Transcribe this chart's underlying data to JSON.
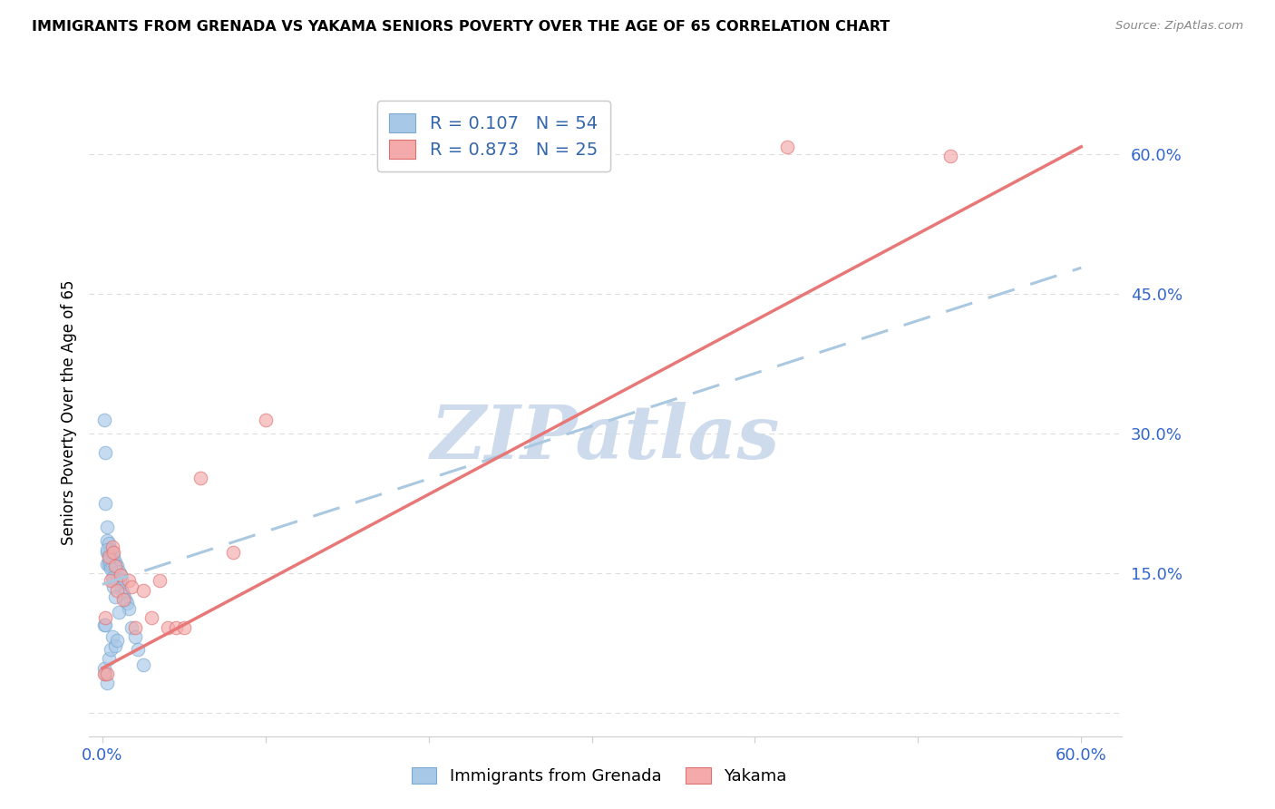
{
  "title": "IMMIGRANTS FROM GRENADA VS YAKAMA SENIORS POVERTY OVER THE AGE OF 65 CORRELATION CHART",
  "source": "Source: ZipAtlas.com",
  "ylabel": "Seniors Poverty Over the Age of 65",
  "watermark": "ZIPatlas",
  "watermark_color": "#c8d8ea",
  "blue_color": "#a8c8e8",
  "blue_edge": "#7aaad0",
  "pink_color": "#f4aaaa",
  "pink_edge": "#e07070",
  "blue_line_color": "#aac8e0",
  "pink_line_color": "#e87878",
  "axis_tick_color": "#3366cc",
  "grid_color": "#dddddd",
  "background_color": "#ffffff",
  "legend_R1": "R = 0.107",
  "legend_N1": "N = 54",
  "legend_R2": "R = 0.873",
  "legend_N2": "N = 25",
  "legend_label1": "Immigrants from Grenada",
  "legend_label2": "Yakama",
  "xlim": [
    -0.008,
    0.625
  ],
  "ylim": [
    -0.025,
    0.67
  ],
  "blue_line_x0": 0.0,
  "blue_line_y0": 0.138,
  "blue_line_x1": 0.6,
  "blue_line_y1": 0.478,
  "pink_line_x0": 0.0,
  "pink_line_y0": 0.048,
  "pink_line_x1": 0.6,
  "pink_line_y1": 0.608,
  "blue_x": [
    0.001,
    0.001,
    0.001,
    0.002,
    0.002,
    0.002,
    0.002,
    0.003,
    0.003,
    0.003,
    0.003,
    0.003,
    0.004,
    0.004,
    0.004,
    0.004,
    0.005,
    0.005,
    0.005,
    0.005,
    0.006,
    0.006,
    0.006,
    0.006,
    0.007,
    0.007,
    0.007,
    0.008,
    0.008,
    0.008,
    0.009,
    0.009,
    0.009,
    0.01,
    0.01,
    0.011,
    0.011,
    0.012,
    0.012,
    0.013,
    0.014,
    0.015,
    0.016,
    0.018,
    0.02,
    0.022,
    0.025,
    0.003,
    0.004,
    0.005,
    0.006,
    0.007,
    0.008,
    0.01
  ],
  "blue_y": [
    0.315,
    0.095,
    0.048,
    0.28,
    0.225,
    0.095,
    0.042,
    0.2,
    0.185,
    0.172,
    0.16,
    0.032,
    0.182,
    0.17,
    0.16,
    0.058,
    0.175,
    0.168,
    0.158,
    0.068,
    0.172,
    0.165,
    0.155,
    0.082,
    0.168,
    0.158,
    0.142,
    0.162,
    0.155,
    0.072,
    0.158,
    0.148,
    0.078,
    0.152,
    0.142,
    0.148,
    0.138,
    0.142,
    0.132,
    0.128,
    0.122,
    0.118,
    0.112,
    0.092,
    0.082,
    0.068,
    0.052,
    0.175,
    0.165,
    0.155,
    0.145,
    0.135,
    0.125,
    0.108
  ],
  "pink_x": [
    0.001,
    0.002,
    0.003,
    0.004,
    0.005,
    0.006,
    0.007,
    0.008,
    0.009,
    0.011,
    0.013,
    0.016,
    0.018,
    0.02,
    0.025,
    0.03,
    0.035,
    0.04,
    0.045,
    0.05,
    0.06,
    0.08,
    0.1,
    0.42,
    0.52
  ],
  "pink_y": [
    0.042,
    0.102,
    0.042,
    0.168,
    0.142,
    0.178,
    0.172,
    0.158,
    0.132,
    0.148,
    0.122,
    0.142,
    0.135,
    0.092,
    0.132,
    0.102,
    0.142,
    0.092,
    0.092,
    0.092,
    0.252,
    0.172,
    0.315,
    0.608,
    0.598
  ]
}
